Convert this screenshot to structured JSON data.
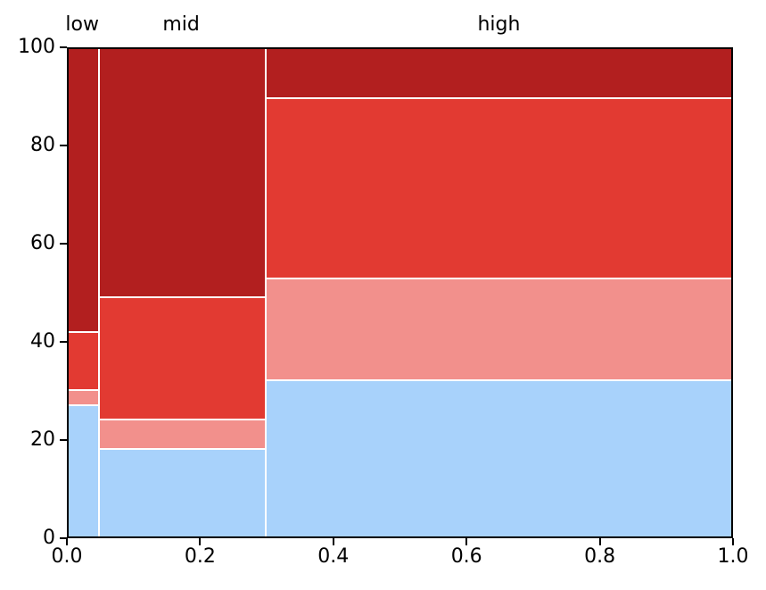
{
  "figure": {
    "background": "#ffffff"
  },
  "chart_data": {
    "type": "mosaic",
    "title": "",
    "x_axis": {
      "lim": [
        0.0,
        1.0
      ],
      "tick_labels": [
        "0.0",
        "0.2",
        "0.4",
        "0.6",
        "0.8",
        "1.0"
      ]
    },
    "y_axis": {
      "lim": [
        0,
        100
      ],
      "tick_labels": [
        "0",
        "20",
        "40",
        "60",
        "80",
        "100"
      ]
    },
    "segment_colors": [
      {
        "name": "light-blue",
        "hex": "#a8d2fb"
      },
      {
        "name": "salmon-pink",
        "hex": "#f2908c"
      },
      {
        "name": "red",
        "hex": "#e23a32"
      },
      {
        "name": "dark-red",
        "hex": "#b21f1f"
      }
    ],
    "separator_color": "#ffffff",
    "axis_color": "#000000",
    "columns": [
      {
        "label": "low",
        "x_start": 0.0,
        "x_end": 0.046,
        "segment_values": [
          27,
          3,
          12,
          58
        ]
      },
      {
        "label": "mid",
        "x_start": 0.046,
        "x_end": 0.297,
        "segment_values": [
          18,
          6,
          25,
          51
        ]
      },
      {
        "label": "high",
        "x_start": 0.297,
        "x_end": 1.0,
        "segment_values": [
          32,
          21,
          37,
          10
        ]
      }
    ],
    "grid": false,
    "legend": false
  }
}
